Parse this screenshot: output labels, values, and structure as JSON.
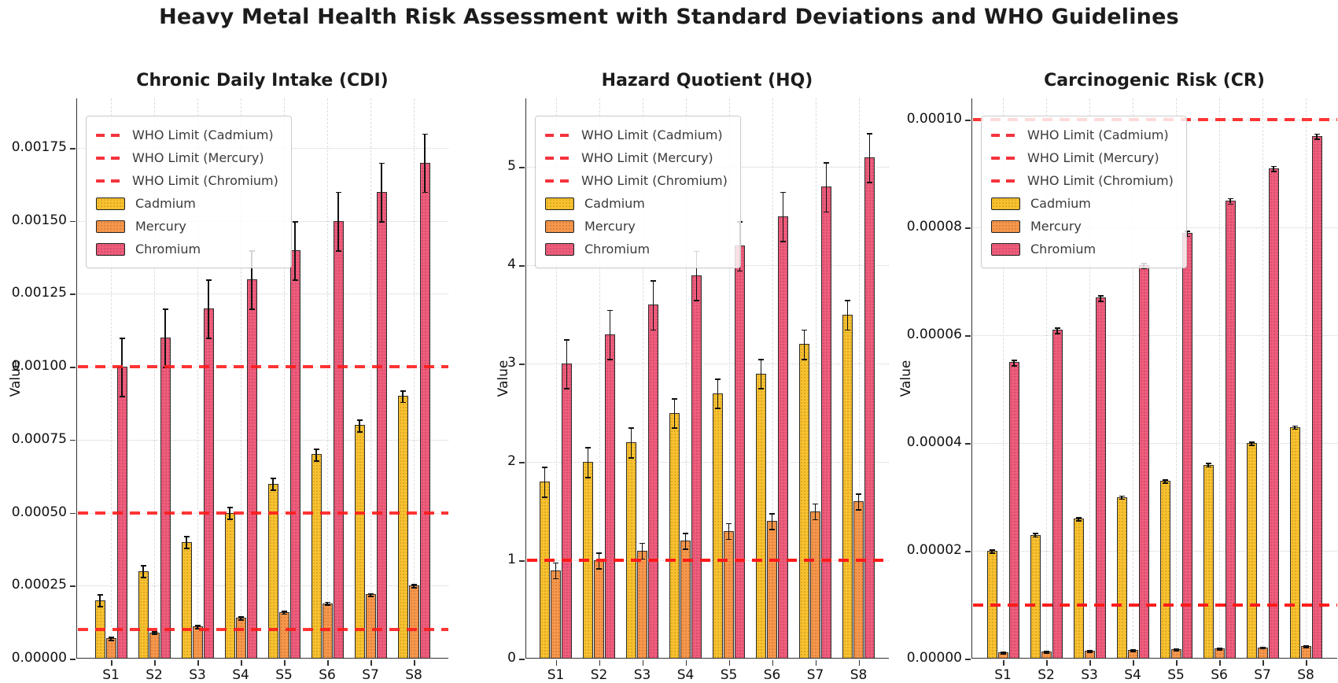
{
  "title": "Heavy Metal Health Risk Assessment with Standard Deviations and WHO Guidelines",
  "colors": {
    "cadmium": "#F9C12E",
    "mercury": "#F8974B",
    "chromium": "#F05C7C",
    "who_line": "#FF1919",
    "background": "#FFFFFF"
  },
  "legend": {
    "who_items": [
      "WHO Limit (Cadmium)",
      "WHO Limit (Mercury)",
      "WHO Limit (Chromium)"
    ],
    "series_items": [
      "Cadmium",
      "Mercury",
      "Chromium"
    ]
  },
  "chart_data": [
    {
      "type": "bar",
      "title": "Chronic Daily Intake (CDI)",
      "ylabel": "Value",
      "xlabel": "",
      "categories": [
        "S1",
        "S2",
        "S3",
        "S4",
        "S5",
        "S6",
        "S7",
        "S8"
      ],
      "series": [
        {
          "name": "Cadmium",
          "color": "#F9C12E",
          "values": [
            0.0002,
            0.0003,
            0.0004,
            0.0005,
            0.0006,
            0.0007,
            0.0008,
            0.0009
          ],
          "error": 2e-05
        },
        {
          "name": "Mercury",
          "color": "#F8974B",
          "values": [
            7e-05,
            9e-05,
            0.00011,
            0.00014,
            0.00016,
            0.00019,
            0.00022,
            0.00025
          ],
          "error": 5e-06
        },
        {
          "name": "Chromium",
          "color": "#F05C7C",
          "values": [
            0.001,
            0.0011,
            0.0012,
            0.0013,
            0.0014,
            0.0015,
            0.0016,
            0.0017
          ],
          "error": 0.0001
        }
      ],
      "who_limits": [
        {
          "label": "WHO Limit (Cadmium)",
          "value": 0.001
        },
        {
          "label": "WHO Limit (Mercury)",
          "value": 0.0005
        },
        {
          "label": "WHO Limit (Chromium)",
          "value": 0.0001
        }
      ],
      "ylim": [
        0,
        0.00192
      ],
      "yticks": [
        0,
        0.00025,
        0.0005,
        0.00075,
        0.001,
        0.00125,
        0.0015,
        0.00175
      ],
      "ytick_labels": [
        "0.00000",
        "0.00025",
        "0.00050",
        "0.00075",
        "0.00100",
        "0.00125",
        "0.00150",
        "0.00175"
      ],
      "grid": true,
      "legend_position": "upper left"
    },
    {
      "type": "bar",
      "title": "Hazard Quotient (HQ)",
      "ylabel": "Value",
      "xlabel": "",
      "categories": [
        "S1",
        "S2",
        "S3",
        "S4",
        "S5",
        "S6",
        "S7",
        "S8"
      ],
      "series": [
        {
          "name": "Cadmium",
          "color": "#F9C12E",
          "values": [
            1.8,
            2.0,
            2.2,
            2.5,
            2.7,
            2.9,
            3.2,
            3.5
          ],
          "error": 0.15
        },
        {
          "name": "Mercury",
          "color": "#F8974B",
          "values": [
            0.9,
            1.0,
            1.1,
            1.2,
            1.3,
            1.4,
            1.5,
            1.6
          ],
          "error": 0.08
        },
        {
          "name": "Chromium",
          "color": "#F05C7C",
          "values": [
            3.0,
            3.3,
            3.6,
            3.9,
            4.2,
            4.5,
            4.8,
            5.1
          ],
          "error": 0.25
        }
      ],
      "who_limits": [
        {
          "label": "WHO Limit (Cadmium)",
          "value": 1.0
        },
        {
          "label": "WHO Limit (Mercury)",
          "value": 1.0
        },
        {
          "label": "WHO Limit (Chromium)",
          "value": 1.0
        }
      ],
      "ylim": [
        0,
        5.7
      ],
      "yticks": [
        0,
        1,
        2,
        3,
        4,
        5
      ],
      "ytick_labels": [
        "0",
        "1",
        "2",
        "3",
        "4",
        "5"
      ],
      "grid": true,
      "legend_position": "upper left"
    },
    {
      "type": "bar",
      "title": "Carcinogenic Risk (CR)",
      "ylabel": "Value",
      "xlabel": "",
      "categories": [
        "S1",
        "S2",
        "S3",
        "S4",
        "S5",
        "S6",
        "S7",
        "S8"
      ],
      "series": [
        {
          "name": "Cadmium",
          "color": "#F9C12E",
          "values": [
            2e-05,
            2.3e-05,
            2.6e-05,
            3e-05,
            3.3e-05,
            3.6e-05,
            4e-05,
            4.3e-05
          ],
          "error": 3e-07
        },
        {
          "name": "Mercury",
          "color": "#F8974B",
          "values": [
            1.2e-06,
            1.3e-06,
            1.5e-06,
            1.6e-06,
            1.8e-06,
            1.9e-06,
            2.1e-06,
            2.3e-06
          ],
          "error": 1.5e-07
        },
        {
          "name": "Chromium",
          "color": "#F05C7C",
          "values": [
            5.5e-05,
            6.1e-05,
            6.7e-05,
            7.3e-05,
            7.9e-05,
            8.5e-05,
            9.1e-05,
            9.7e-05
          ],
          "error": 5e-07
        }
      ],
      "who_limits": [
        {
          "label": "WHO Limit (Cadmium)",
          "value": 0.0001
        },
        {
          "label": "WHO Limit (Mercury)",
          "value": 1e-05
        },
        {
          "label": "WHO Limit (Chromium)",
          "value": 1e-05
        }
      ],
      "ylim": [
        0,
        0.000104
      ],
      "yticks": [
        0,
        2e-05,
        4e-05,
        6e-05,
        8e-05,
        0.0001
      ],
      "ytick_labels": [
        "0.00000",
        "0.00002",
        "0.00004",
        "0.00006",
        "0.00008",
        "0.00010"
      ],
      "grid": true,
      "legend_position": "upper left"
    }
  ]
}
